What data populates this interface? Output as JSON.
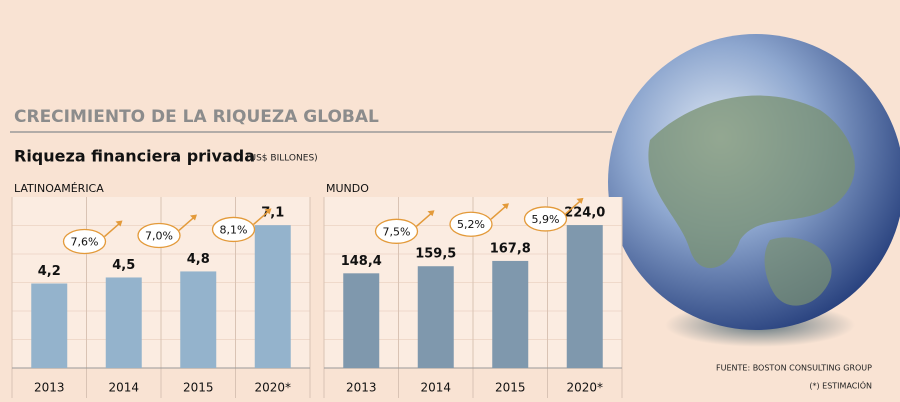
{
  "header": {
    "title": "CRECIMIENTO DE LA RIQUEZA GLOBAL",
    "subtitle": "Riqueza financiera privada",
    "unit": "(US$ BILLONES)"
  },
  "chart_data": [
    {
      "type": "bar",
      "label": "LATINOAMÉRICA",
      "categories": [
        "2013",
        "2014",
        "2015",
        "2020*"
      ],
      "values": [
        4.2,
        4.5,
        4.8,
        7.1
      ],
      "value_labels": [
        "4,2",
        "4,5",
        "4,8",
        "7,1"
      ],
      "color": "#94b3cc",
      "ylim": [
        0,
        8.5
      ],
      "annotations": [
        {
          "value": 7.6,
          "label": "7,6%"
        },
        {
          "value": 7.0,
          "label": "7,0%"
        },
        {
          "value": 8.1,
          "label": "8,1%"
        }
      ]
    },
    {
      "type": "bar",
      "label": "MUNDO",
      "categories": [
        "2013",
        "2014",
        "2015",
        "2020*"
      ],
      "values": [
        148.4,
        159.5,
        167.8,
        224.0
      ],
      "value_labels": [
        "148,4",
        "159,5",
        "167,8",
        "224,0"
      ],
      "color": "#7f98ad",
      "ylim": [
        0,
        268
      ],
      "annotations": [
        {
          "value": 7.5,
          "label": "7,5%"
        },
        {
          "value": 5.2,
          "label": "5,2%"
        },
        {
          "value": 5.9,
          "label": "5,9%"
        }
      ]
    }
  ],
  "footer": {
    "source": "FUENTE: BOSTON CONSULTING GROUP",
    "note": "(*) ESTIMACIÓN"
  }
}
